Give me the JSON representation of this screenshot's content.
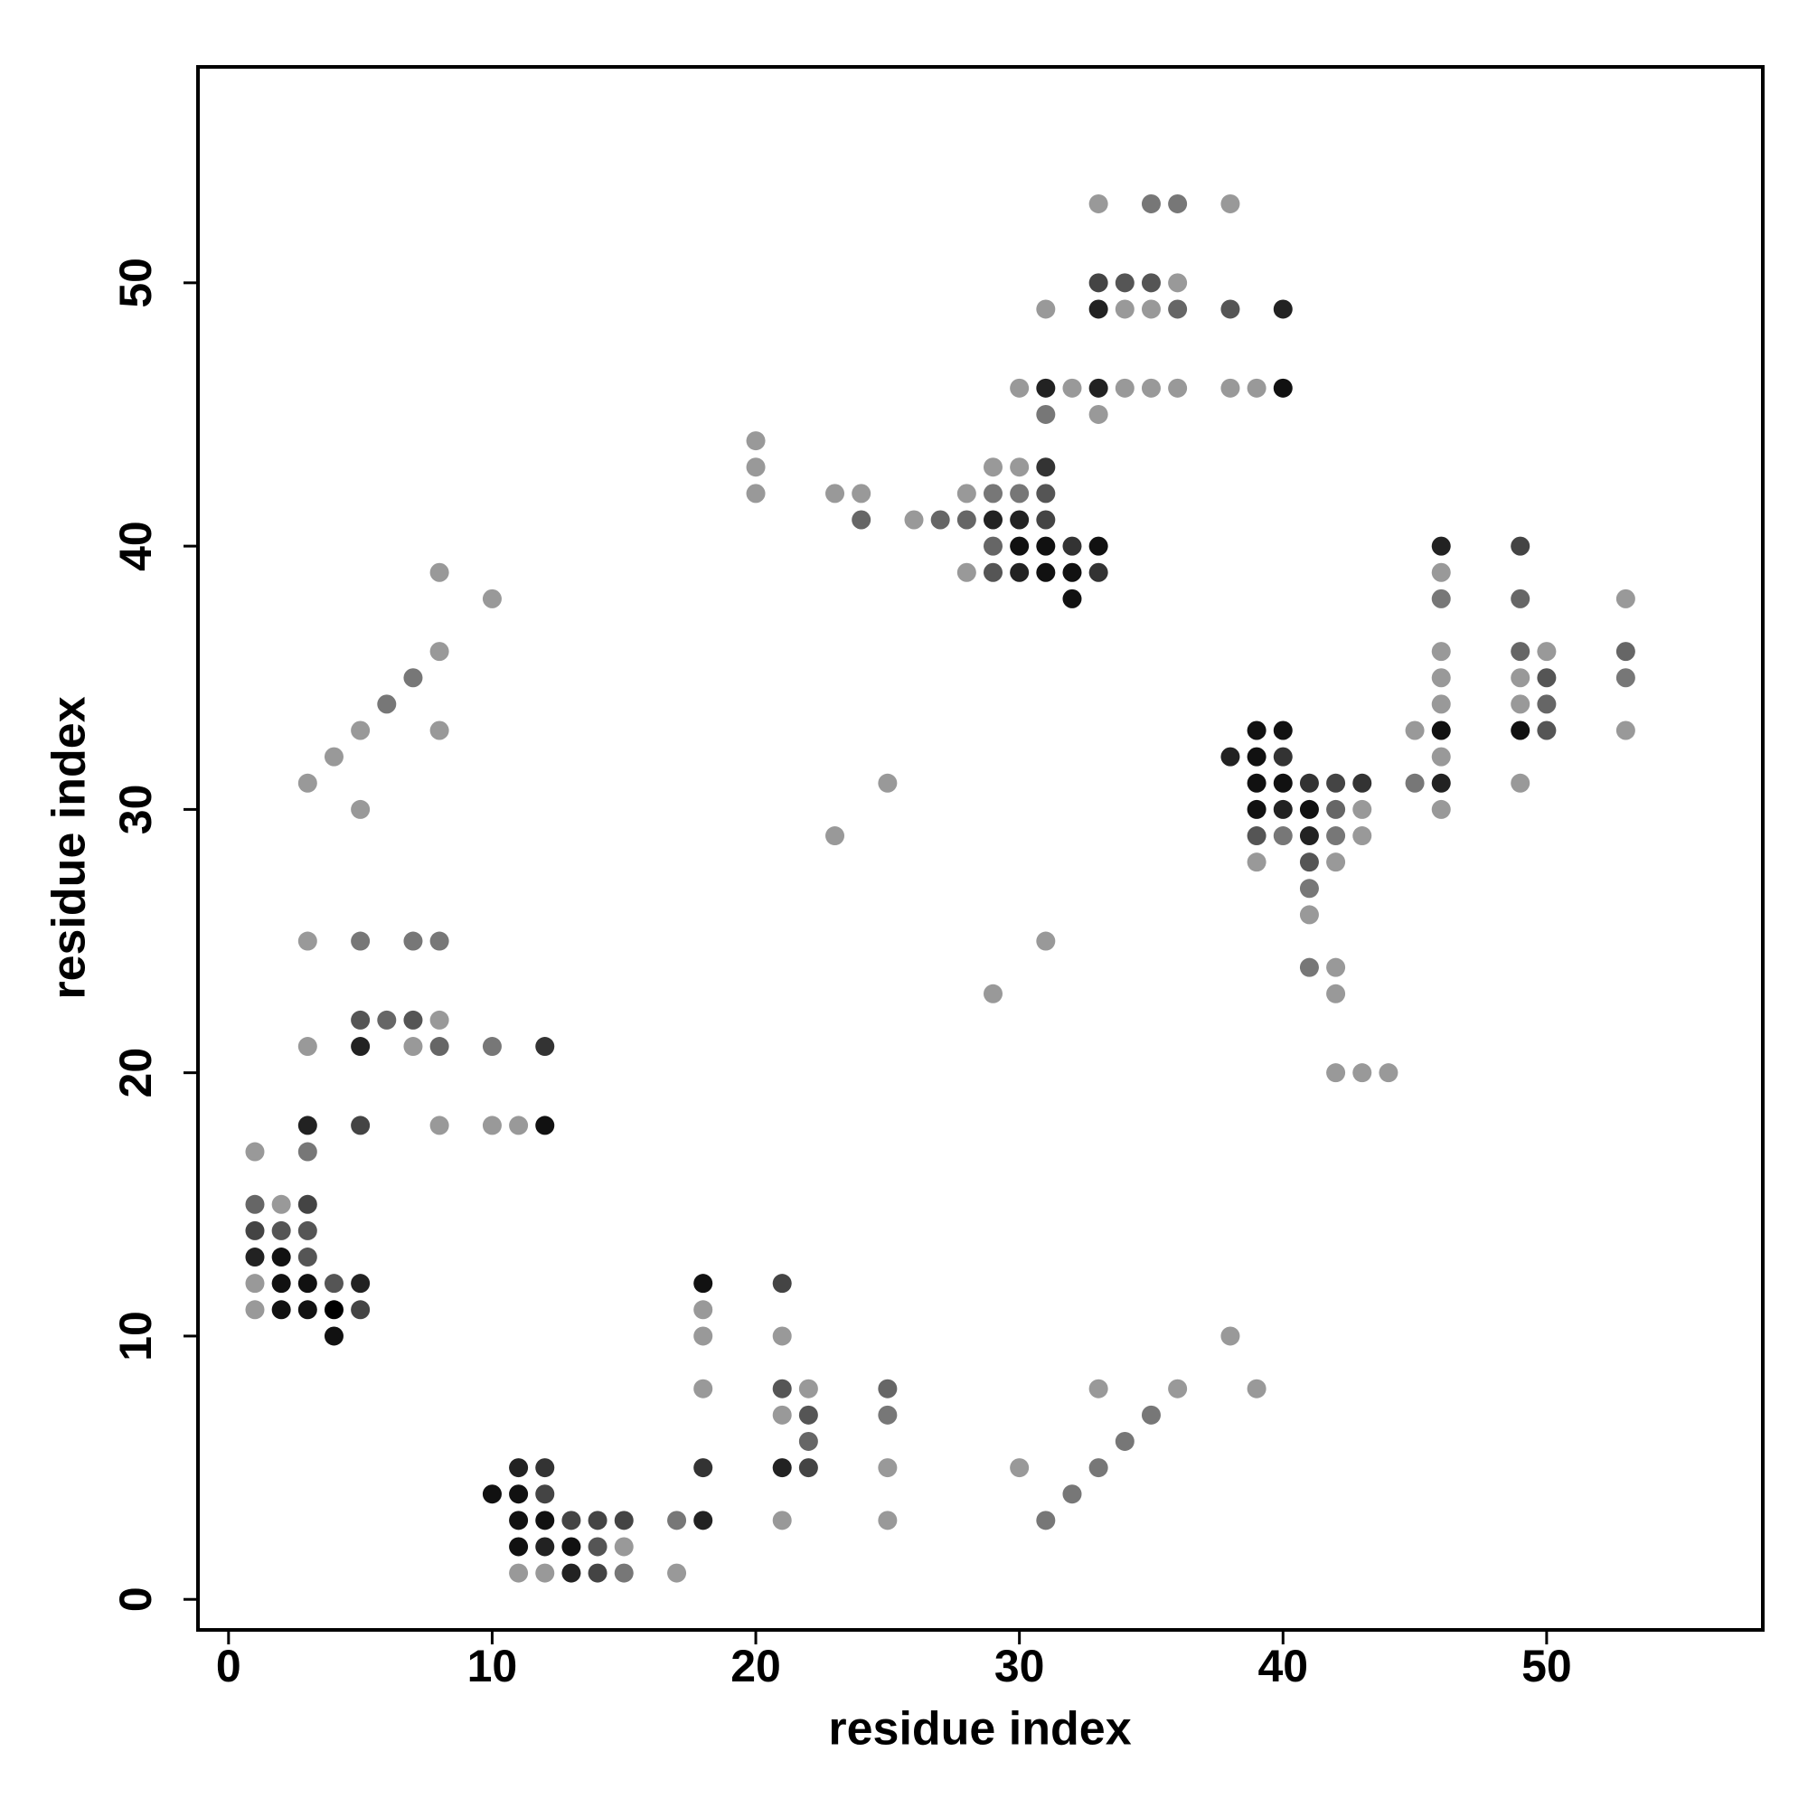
{
  "chart_data": {
    "type": "scatter",
    "x_label": "residue index",
    "y_label": "residue index",
    "xlim": [
      -1.16,
      58.2
    ],
    "ylim": [
      -1.16,
      58.2
    ],
    "xticks": [
      0,
      10,
      20,
      30,
      40,
      50
    ],
    "yticks": [
      0,
      10,
      20,
      30,
      40,
      50
    ],
    "grid": false,
    "x": [
      33,
      35,
      36,
      38,
      33,
      34,
      35,
      36,
      31,
      33,
      34,
      35,
      36,
      38,
      40,
      30,
      31,
      32,
      33,
      34,
      35,
      36,
      38,
      39,
      40,
      31,
      33,
      20,
      20,
      29,
      30,
      31,
      20,
      23,
      24,
      28,
      29,
      30,
      31,
      24,
      26,
      27,
      28,
      29,
      30,
      31,
      29,
      30,
      31,
      32,
      33,
      46,
      49,
      8,
      28,
      29,
      30,
      31,
      32,
      33,
      46,
      10,
      32,
      46,
      49,
      53,
      8,
      46,
      49,
      50,
      53,
      7,
      46,
      49,
      50,
      53,
      6,
      46,
      49,
      50,
      5,
      8,
      39,
      40,
      45,
      46,
      49,
      50,
      53,
      4,
      38,
      39,
      40,
      46,
      3,
      25,
      39,
      40,
      41,
      42,
      43,
      45,
      46,
      49,
      5,
      39,
      40,
      41,
      42,
      43,
      46,
      23,
      39,
      40,
      41,
      42,
      43,
      39,
      41,
      42,
      41,
      41,
      3,
      5,
      7,
      8,
      31,
      41,
      42,
      29,
      42,
      5,
      6,
      7,
      8,
      3,
      5,
      7,
      8,
      10,
      12,
      42,
      43,
      44,
      3,
      5,
      8,
      10,
      11,
      12,
      1,
      3,
      1,
      2,
      3,
      1,
      2,
      3,
      1,
      2,
      3,
      1,
      2,
      3,
      4,
      5,
      18,
      21,
      1,
      2,
      3,
      4,
      5,
      18,
      4,
      18,
      21,
      38,
      18,
      21,
      22,
      25,
      33,
      36,
      39,
      21,
      22,
      25,
      35,
      22,
      34,
      11,
      12,
      18,
      21,
      22,
      25,
      30,
      33,
      10,
      11,
      12,
      32,
      11,
      12,
      13,
      14,
      15,
      17,
      18,
      21,
      25,
      31,
      11,
      12,
      13,
      14,
      15,
      11,
      12,
      13,
      14,
      15,
      17
    ],
    "values": [
      53,
      53,
      53,
      53,
      50,
      50,
      50,
      50,
      49,
      49,
      49,
      49,
      49,
      49,
      49,
      46,
      46,
      46,
      46,
      46,
      46,
      46,
      46,
      46,
      46,
      45,
      45,
      44,
      43,
      43,
      43,
      43,
      42,
      42,
      42,
      42,
      42,
      42,
      42,
      41,
      41,
      41,
      41,
      41,
      41,
      41,
      40,
      40,
      40,
      40,
      40,
      40,
      40,
      39,
      39,
      39,
      39,
      39,
      39,
      39,
      39,
      38,
      38,
      38,
      38,
      38,
      36,
      36,
      36,
      36,
      36,
      35,
      35,
      35,
      35,
      35,
      34,
      34,
      34,
      34,
      33,
      33,
      33,
      33,
      33,
      33,
      33,
      33,
      33,
      32,
      32,
      32,
      32,
      32,
      31,
      31,
      31,
      31,
      31,
      31,
      31,
      31,
      31,
      31,
      30,
      30,
      30,
      30,
      30,
      30,
      30,
      29,
      29,
      29,
      29,
      29,
      29,
      28,
      28,
      28,
      27,
      26,
      25,
      25,
      25,
      25,
      25,
      24,
      24,
      23,
      23,
      22,
      22,
      22,
      22,
      21,
      21,
      21,
      21,
      21,
      21,
      20,
      20,
      20,
      18,
      18,
      18,
      18,
      18,
      18,
      17,
      17,
      15,
      15,
      15,
      14,
      14,
      14,
      13,
      13,
      13,
      12,
      12,
      12,
      12,
      12,
      12,
      12,
      11,
      11,
      11,
      11,
      11,
      11,
      10,
      10,
      10,
      10,
      8,
      8,
      8,
      8,
      8,
      8,
      8,
      7,
      7,
      7,
      7,
      6,
      6,
      5,
      5,
      5,
      5,
      5,
      5,
      5,
      5,
      4,
      4,
      4,
      4,
      3,
      3,
      3,
      3,
      3,
      3,
      3,
      3,
      3,
      3,
      2,
      2,
      2,
      2,
      2,
      1,
      1,
      1,
      1,
      1,
      1
    ],
    "colors": [
      "#999",
      "#777",
      "#777",
      "#999",
      "#444",
      "#555",
      "#555",
      "#999",
      "#999",
      "#222",
      "#999",
      "#999",
      "#666",
      "#555",
      "#222",
      "#999",
      "#222",
      "#999",
      "#222",
      "#999",
      "#999",
      "#999",
      "#999",
      "#999",
      "#111",
      "#777",
      "#999",
      "#999",
      "#999",
      "#999",
      "#999",
      "#333",
      "#999",
      "#999",
      "#999",
      "#999",
      "#777",
      "#777",
      "#555",
      "#666",
      "#999",
      "#666",
      "#666",
      "#222",
      "#222",
      "#444",
      "#666",
      "#111",
      "#111",
      "#333",
      "#111",
      "#222",
      "#444",
      "#999",
      "#999",
      "#555",
      "#222",
      "#111",
      "#111",
      "#333",
      "#999",
      "#999",
      "#111",
      "#777",
      "#666",
      "#999",
      "#999",
      "#999",
      "#666",
      "#999",
      "#666",
      "#777",
      "#999",
      "#999",
      "#555",
      "#777",
      "#777",
      "#999",
      "#999",
      "#666",
      "#999",
      "#999",
      "#111",
      "#111",
      "#999",
      "#111",
      "#111",
      "#555",
      "#999",
      "#999",
      "#222",
      "#111",
      "#333",
      "#999",
      "#999",
      "#999",
      "#111",
      "#111",
      "#333",
      "#444",
      "#333",
      "#777",
      "#222",
      "#999",
      "#999",
      "#111",
      "#222",
      "#111",
      "#666",
      "#999",
      "#999",
      "#999",
      "#555",
      "#777",
      "#222",
      "#777",
      "#999",
      "#999",
      "#555",
      "#999",
      "#777",
      "#999",
      "#999",
      "#777",
      "#777",
      "#777",
      "#999",
      "#777",
      "#999",
      "#999",
      "#999",
      "#555",
      "#666",
      "#555",
      "#999",
      "#999",
      "#222",
      "#999",
      "#666",
      "#777",
      "#333",
      "#999",
      "#999",
      "#999",
      "#222",
      "#444",
      "#999",
      "#999",
      "#999",
      "#111",
      "#999",
      "#777",
      "#666",
      "#999",
      "#444",
      "#444",
      "#555",
      "#555",
      "#222",
      "#111",
      "#555",
      "#999",
      "#111",
      "#111",
      "#555",
      "#222",
      "#111",
      "#444",
      "#999",
      "#111",
      "#111",
      "#000",
      "#444",
      "#999",
      "#111",
      "#999",
      "#999",
      "#999",
      "#999",
      "#555",
      "#999",
      "#666",
      "#999",
      "#999",
      "#999",
      "#999",
      "#555",
      "#777",
      "#777",
      "#666",
      "#777",
      "#222",
      "#333",
      "#333",
      "#222",
      "#444",
      "#999",
      "#999",
      "#777",
      "#111",
      "#111",
      "#444",
      "#777",
      "#111",
      "#111",
      "#444",
      "#444",
      "#444",
      "#777",
      "#222",
      "#999",
      "#999",
      "#777",
      "#111",
      "#222",
      "#111",
      "#555",
      "#999",
      "#999",
      "#999",
      "#222",
      "#444",
      "#777",
      "#999"
    ]
  }
}
